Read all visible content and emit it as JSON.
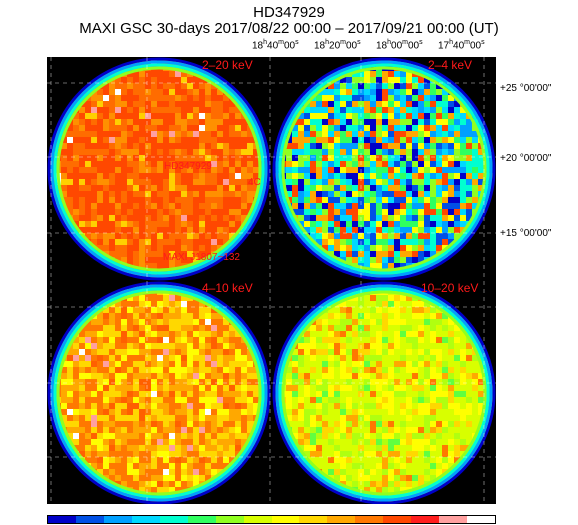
{
  "title": "HD347929",
  "subtitle": "MAXI GSC 30-days 2017/08/22 00:00 – 2017/09/21 00:00 (UT)",
  "ra_ticks": [
    {
      "h": "18",
      "m": "40",
      "s": "00"
    },
    {
      "h": "18",
      "m": "20",
      "s": "00"
    },
    {
      "h": "18",
      "m": "00",
      "s": "00"
    },
    {
      "h": "17",
      "m": "40",
      "s": "00"
    }
  ],
  "dec_ticks": [
    "+25 °00'00\"",
    "+20 °00'00\"",
    "+15 °00'00\""
  ],
  "panels": [
    {
      "band": "2–20 keV",
      "palette": "hot"
    },
    {
      "band": "2–4 keV",
      "palette": "noisy"
    },
    {
      "band": "4–10 keV",
      "palette": "warm"
    },
    {
      "band": "10–20 keV",
      "palette": "mid"
    }
  ],
  "sources": [
    {
      "name": "HD347929"
    },
    {
      "name": "4C"
    },
    {
      "name": "MAXI J1807−132"
    }
  ],
  "colorbar": [
    "#0000c8",
    "#0050e6",
    "#00a0ff",
    "#00d8ff",
    "#00ffd0",
    "#30ff60",
    "#90ff20",
    "#d8ff00",
    "#ffff00",
    "#ffd800",
    "#ffa800",
    "#ff7800",
    "#ff4800",
    "#ff1e1e",
    "#ffa0a0",
    "#ffffff"
  ]
}
